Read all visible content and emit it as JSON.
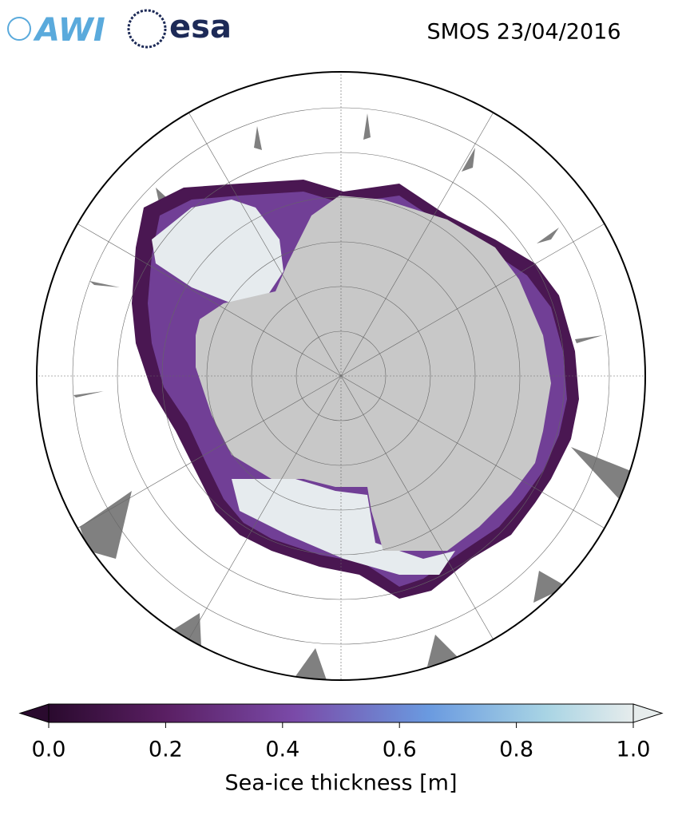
{
  "logos": {
    "awi": "AWI",
    "esa": "esa"
  },
  "title": "SMOS 23/04/2016",
  "colorbar": {
    "label": "Sea-ice thickness [m]",
    "lim": [
      0,
      1
    ],
    "ticks": [
      {
        "value": 0,
        "label": "0.0"
      },
      {
        "value": 0.2,
        "label": "0.2"
      },
      {
        "value": 0.4,
        "label": "0.4"
      },
      {
        "value": 0.6,
        "label": "0.6"
      },
      {
        "value": 0.8,
        "label": "0.8"
      },
      {
        "value": 1,
        "label": "1.0"
      }
    ]
  }
}
